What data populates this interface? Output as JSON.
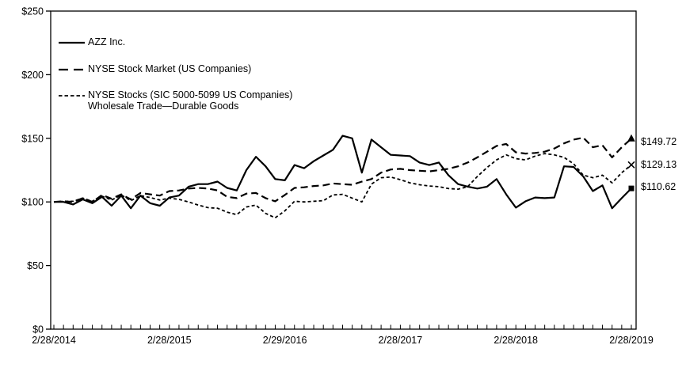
{
  "chart_data": {
    "type": "line",
    "title": "",
    "xlabel": "",
    "ylabel": "",
    "grid": false,
    "legend_position": "top-left-inside",
    "x_unit": "months since 2/28/2014",
    "x_range": [
      0,
      60
    ],
    "x_minor_tick_interval": 1,
    "x_tick_positions": [
      0,
      12,
      24,
      36,
      48,
      60
    ],
    "x_tick_labels": [
      "2/28/2014",
      "2/28/2015",
      "2/29/2016",
      "2/28/2017",
      "2/28/2018",
      "2/28/2019"
    ],
    "y_range": [
      0,
      250
    ],
    "y_tick_values": [
      0,
      50,
      100,
      150,
      200,
      250
    ],
    "y_tick_labels": [
      "$0",
      "$50",
      "$100",
      "$150",
      "$200",
      "$250"
    ],
    "series": [
      {
        "id": "azz",
        "name": "AZZ Inc.",
        "style": "solid",
        "marker_end": "square",
        "end_label": "$110.62",
        "values": [
          100,
          100,
          98,
          102,
          99,
          104,
          97,
          105,
          95,
          105,
          99,
          97,
          103.5,
          105,
          112,
          114,
          114,
          116,
          111,
          109,
          125,
          135.5,
          128,
          118,
          117,
          129,
          126.5,
          132,
          136.5,
          141,
          152,
          150,
          123,
          149,
          143,
          137,
          136.5,
          136,
          131,
          129,
          131,
          121,
          114,
          112,
          110.5,
          112,
          118,
          106,
          95.5,
          100.5,
          103.5,
          103,
          103.5,
          128,
          127.5,
          120,
          108.5,
          113,
          95,
          103,
          110.62
        ]
      },
      {
        "id": "nyse-composite",
        "name": "NYSE Stock Market (US Companies)",
        "style": "long-dash",
        "marker_end": "triangle",
        "end_label": "$149.72",
        "values": [
          100,
          100.5,
          100,
          103,
          100,
          105.5,
          102.5,
          106,
          102,
          107,
          106,
          105,
          108.5,
          109,
          110.5,
          111,
          110.5,
          109,
          104,
          103,
          106.5,
          107,
          103,
          100.5,
          105.5,
          111,
          111.5,
          112.5,
          113,
          114.5,
          114,
          113.5,
          116,
          118,
          123,
          125.5,
          126,
          125,
          124.5,
          124,
          125,
          126,
          128,
          131,
          135,
          139.5,
          144,
          145.5,
          139,
          138,
          138.5,
          139.5,
          142,
          146,
          149,
          150.5,
          143,
          144.5,
          135,
          143,
          149.72
        ]
      },
      {
        "id": "nyse-sic",
        "name": "NYSE Stocks (SIC 5000-5099 US Companies) Wholesale Trade—Durable Goods",
        "style": "short-dash",
        "marker_end": "x",
        "end_label": "$129.13",
        "values": [
          100,
          100.5,
          100.5,
          103,
          100.5,
          104.5,
          101.5,
          105.5,
          101,
          105,
          103.5,
          101.5,
          103,
          102,
          100,
          97.5,
          95.5,
          95,
          92,
          90,
          96,
          97.5,
          91,
          87.5,
          93,
          100.5,
          100,
          100.5,
          101,
          105.5,
          106,
          103,
          100,
          114,
          119,
          119.5,
          117.5,
          115,
          113.5,
          112.5,
          112,
          110.5,
          110,
          112,
          120,
          127,
          133,
          137,
          134,
          133,
          136,
          138,
          137,
          135,
          130,
          121,
          119,
          121,
          115,
          123,
          129.13
        ]
      }
    ]
  },
  "legend": {
    "items": [
      {
        "label": "AZZ Inc."
      },
      {
        "label": "NYSE Stock Market (US Companies)"
      },
      {
        "label_line1": "NYSE Stocks (SIC 5000-5099 US Companies)",
        "label_line2": "Wholesale Trade—Durable Goods"
      }
    ]
  },
  "end_labels": {
    "top": "$149.72",
    "middle": "$129.13",
    "bottom": "$110.62"
  },
  "colors": {
    "line": "#000000",
    "background": "#ffffff",
    "text": "#000000"
  }
}
